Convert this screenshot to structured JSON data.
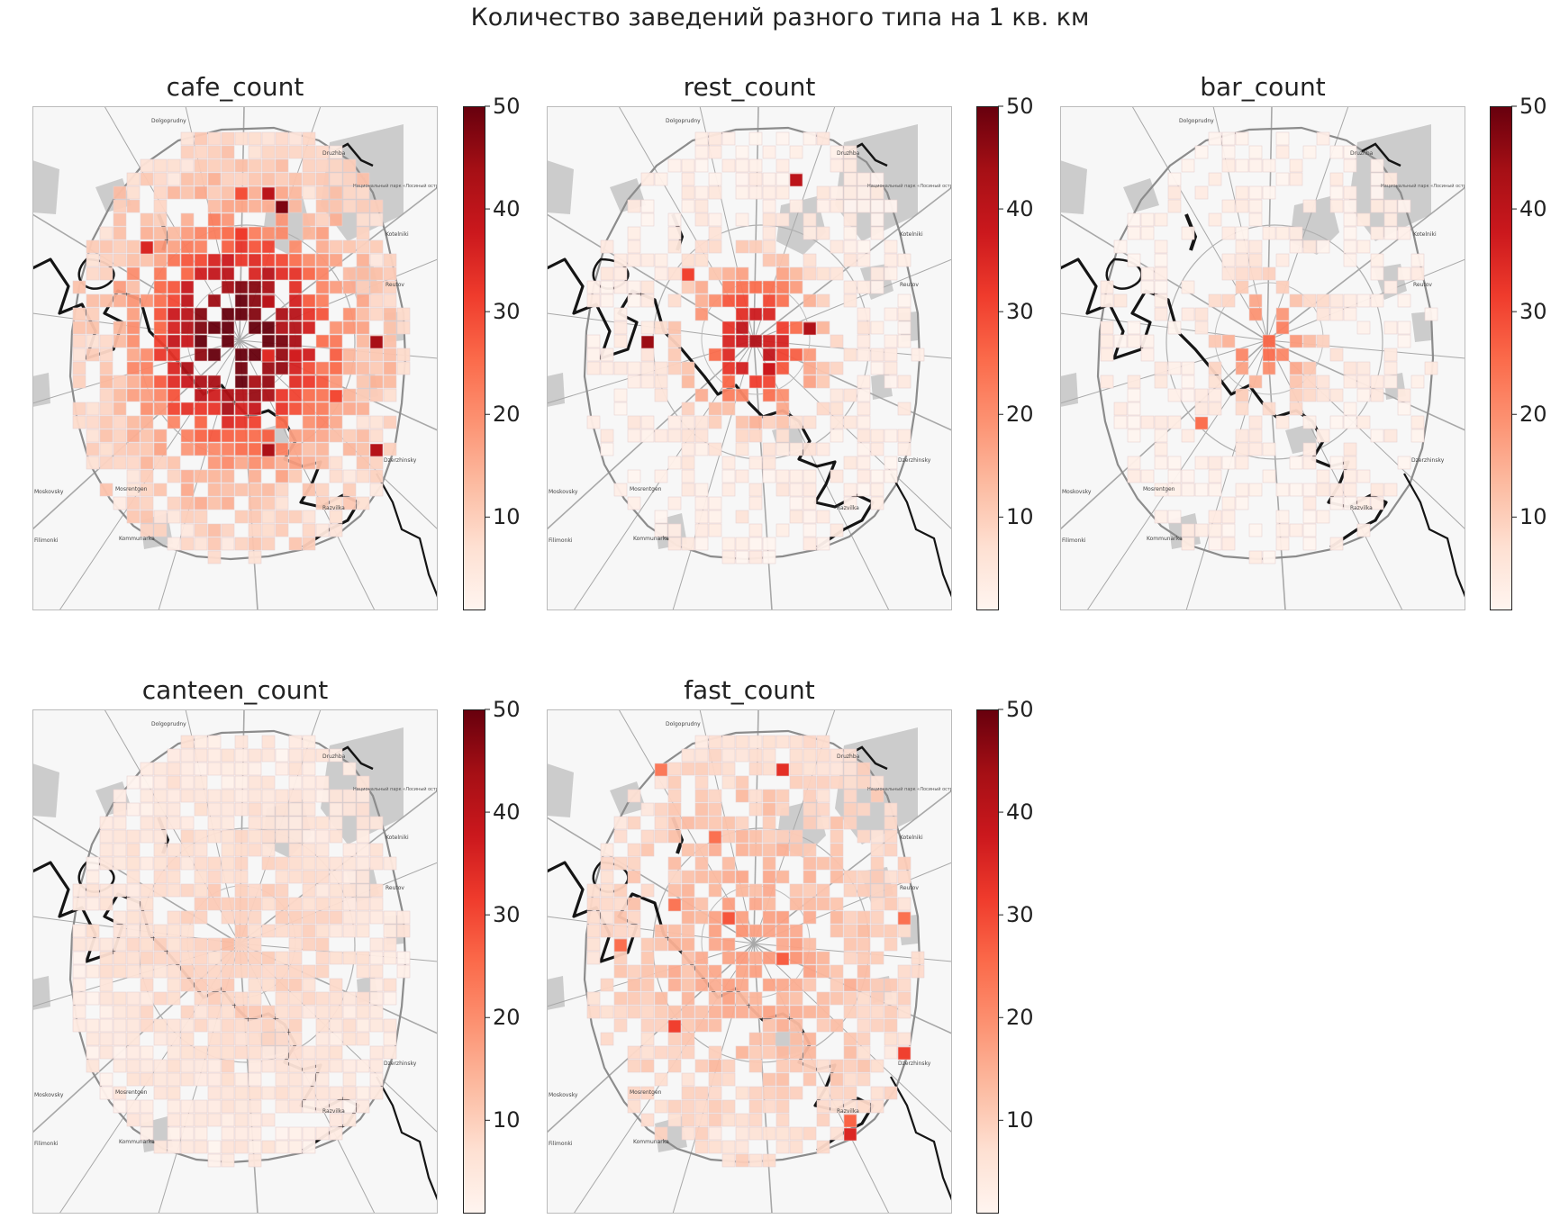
{
  "suptitle": "Количество заведений разного типа на 1 кв. км",
  "colormap": {
    "name": "Reds",
    "stops": [
      "#fff5f0",
      "#fee0d2",
      "#fcbba1",
      "#fc9272",
      "#fb6a4a",
      "#ef3b2c",
      "#cb181d",
      "#a50f15",
      "#67000d"
    ]
  },
  "map_labels": {
    "dolgoprudny": "Dolgoprudny",
    "druzhba": "Druzhba",
    "park": "Национальный парк «Лосиный остров»",
    "reutov": "Reutov",
    "dzerzhinsky": "Dzerzhinsky",
    "mosrentgen": "Mosrentgen",
    "razvilka": "Razvilka",
    "kommunarka": "Kommunarka",
    "filimonki": "Filimonki",
    "moskovsky": "Moskovsky",
    "kotelniki": "Kotelniki"
  },
  "chart_data": [
    {
      "type": "heatmap",
      "title": "cafe_count",
      "colorbar": {
        "min": 1,
        "max": 50,
        "ticks": [
          10,
          20,
          30,
          40,
          50
        ]
      }
    },
    {
      "type": "heatmap",
      "title": "rest_count",
      "colorbar": {
        "min": 1,
        "max": 50,
        "ticks": [
          10,
          20,
          30,
          40,
          50
        ]
      }
    },
    {
      "type": "heatmap",
      "title": "bar_count",
      "colorbar": {
        "min": 1,
        "max": 50,
        "ticks": [
          10,
          20,
          30,
          40,
          50
        ]
      }
    },
    {
      "type": "heatmap",
      "title": "canteen_count",
      "colorbar": {
        "min": 1,
        "max": 50,
        "ticks": [
          10,
          20,
          30,
          40,
          50
        ]
      }
    },
    {
      "type": "heatmap",
      "title": "fast_count",
      "colorbar": {
        "min": 1,
        "max": 50,
        "ticks": [
          10,
          20,
          30,
          40,
          50
        ]
      }
    }
  ]
}
